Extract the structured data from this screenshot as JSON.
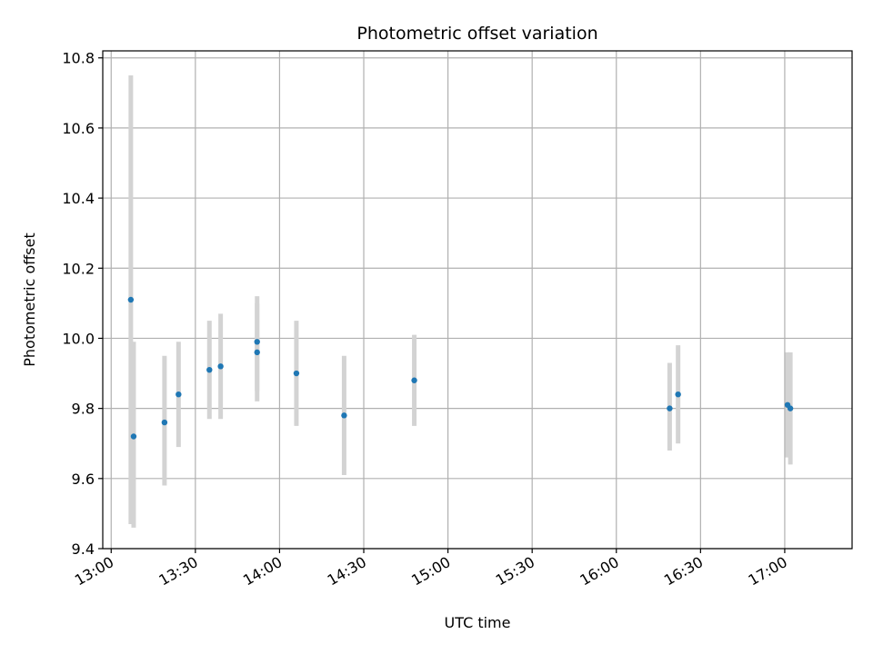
{
  "chart_data": {
    "type": "scatter",
    "title": "Photometric offset variation",
    "xlabel": "UTC time",
    "ylabel": "Photometric offset",
    "x_ticks": [
      "13:00",
      "13:30",
      "14:00",
      "14:30",
      "15:00",
      "15:30",
      "16:00",
      "16:30",
      "17:00"
    ],
    "y_ticks": [
      "9.4",
      "9.6",
      "9.8",
      "10.0",
      "10.2",
      "10.4",
      "10.6",
      "10.8"
    ],
    "xlim": [
      "12:57",
      "17:24"
    ],
    "ylim": [
      9.4,
      10.82
    ],
    "grid": true,
    "points": [
      {
        "x": "13:07",
        "y": 10.11,
        "err_low": 9.47,
        "err_high": 10.75
      },
      {
        "x": "13:08",
        "y": 9.72,
        "err_low": 9.46,
        "err_high": 9.99
      },
      {
        "x": "13:19",
        "y": 9.76,
        "err_low": 9.58,
        "err_high": 9.95
      },
      {
        "x": "13:24",
        "y": 9.84,
        "err_low": 9.69,
        "err_high": 9.99
      },
      {
        "x": "13:35",
        "y": 9.91,
        "err_low": 9.77,
        "err_high": 10.05
      },
      {
        "x": "13:39",
        "y": 9.92,
        "err_low": 9.77,
        "err_high": 10.07
      },
      {
        "x": "13:52",
        "y": 9.96,
        "err_low": 9.82,
        "err_high": 10.1
      },
      {
        "x": "13:52",
        "y": 9.99,
        "err_low": 9.85,
        "err_high": 10.12
      },
      {
        "x": "14:06",
        "y": 9.9,
        "err_low": 9.75,
        "err_high": 10.05
      },
      {
        "x": "14:23",
        "y": 9.78,
        "err_low": 9.61,
        "err_high": 9.95
      },
      {
        "x": "14:48",
        "y": 9.88,
        "err_low": 9.75,
        "err_high": 10.01
      },
      {
        "x": "16:19",
        "y": 9.8,
        "err_low": 9.68,
        "err_high": 9.93
      },
      {
        "x": "16:22",
        "y": 9.84,
        "err_low": 9.7,
        "err_high": 9.98
      },
      {
        "x": "17:01",
        "y": 9.81,
        "err_low": 9.66,
        "err_high": 9.96
      },
      {
        "x": "17:02",
        "y": 9.8,
        "err_low": 9.64,
        "err_high": 9.96
      }
    ],
    "colors": {
      "point": "#1f77b4",
      "errorbar": "#d3d3d3",
      "grid": "#b0b0b0"
    }
  }
}
